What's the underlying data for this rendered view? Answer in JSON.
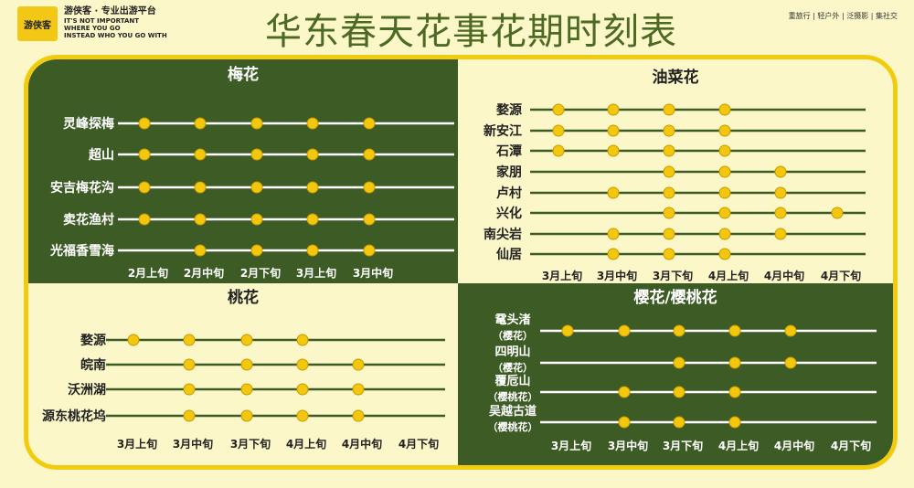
{
  "brand": {
    "logo_text": "游侠客",
    "tagline": "游侠客 · 专业出游平台",
    "slogan_lines": [
      "IT'S NOT IMPORTANT",
      "WHERE YOU GO",
      "INSTEAD WHO YOU GO WITH"
    ]
  },
  "page_title": "华东春天花事花期时刻表",
  "top_links": "重旅行 | 轻户外 | 泛摄影 | 集社交",
  "colors": {
    "dark_green": "#3d5b25",
    "light_bg": "#fbf7c8",
    "yellow": "#f4c70f",
    "border": "#f2cc0c"
  },
  "chart_data": [
    {
      "type": "timeline",
      "title": "梅花",
      "periods": [
        "2月上旬",
        "2月中旬",
        "2月下旬",
        "3月上旬",
        "3月中旬"
      ],
      "rows": [
        {
          "label": "灵峰探梅",
          "periods": [
            "2月上旬",
            "2月中旬",
            "2月下旬",
            "3月上旬",
            "3月中旬"
          ]
        },
        {
          "label": "超山",
          "periods": [
            "2月上旬",
            "2月中旬",
            "2月下旬",
            "3月上旬",
            "3月中旬"
          ]
        },
        {
          "label": "安吉梅花沟",
          "periods": [
            "2月上旬",
            "2月中旬",
            "2月下旬",
            "3月上旬",
            "3月中旬"
          ]
        },
        {
          "label": "卖花渔村",
          "periods": [
            "2月上旬",
            "2月中旬",
            "2月下旬",
            "3月上旬",
            "3月中旬"
          ]
        },
        {
          "label": "光福香雪海",
          "periods": [
            "2月中旬",
            "2月下旬",
            "3月上旬",
            "3月中旬"
          ]
        }
      ]
    },
    {
      "type": "timeline",
      "title": "油菜花",
      "periods": [
        "3月上旬",
        "3月中旬",
        "3月下旬",
        "4月上旬",
        "4月中旬",
        "4月下旬"
      ],
      "rows": [
        {
          "label": "婺源",
          "periods": [
            "3月上旬",
            "3月中旬",
            "3月下旬",
            "4月上旬"
          ]
        },
        {
          "label": "新安江",
          "periods": [
            "3月上旬",
            "3月中旬",
            "3月下旬",
            "4月上旬"
          ]
        },
        {
          "label": "石潭",
          "periods": [
            "3月上旬",
            "3月中旬",
            "3月下旬",
            "4月上旬"
          ]
        },
        {
          "label": "家朋",
          "periods": [
            "3月下旬",
            "4月上旬",
            "4月中旬"
          ]
        },
        {
          "label": "卢村",
          "periods": [
            "3月中旬",
            "3月下旬",
            "4月上旬",
            "4月中旬"
          ]
        },
        {
          "label": "兴化",
          "periods": [
            "3月下旬",
            "4月上旬",
            "4月中旬",
            "4月下旬"
          ]
        },
        {
          "label": "南尖岩",
          "periods": [
            "3月中旬",
            "3月下旬",
            "4月上旬",
            "4月中旬"
          ]
        },
        {
          "label": "仙居",
          "periods": [
            "3月中旬",
            "3月下旬",
            "4月上旬"
          ]
        }
      ]
    },
    {
      "type": "timeline",
      "title": "桃花",
      "periods": [
        "3月上旬",
        "3月中旬",
        "3月下旬",
        "4月上旬",
        "4月中旬",
        "4月下旬"
      ],
      "rows": [
        {
          "label": "婺源",
          "periods": [
            "3月上旬",
            "3月中旬",
            "3月下旬",
            "4月上旬"
          ]
        },
        {
          "label": "皖南",
          "periods": [
            "3月中旬",
            "3月下旬",
            "4月上旬",
            "4月中旬"
          ]
        },
        {
          "label": "沃洲湖",
          "periods": [
            "3月中旬",
            "3月下旬",
            "4月上旬",
            "4月中旬"
          ]
        },
        {
          "label": "源东桃花坞",
          "periods": [
            "3月中旬",
            "3月下旬",
            "4月上旬",
            "4月中旬"
          ]
        }
      ]
    },
    {
      "type": "timeline",
      "title": "樱花/樱桃花",
      "periods": [
        "3月上旬",
        "3月中旬",
        "3月下旬",
        "4月上旬",
        "4月中旬",
        "4月下旬"
      ],
      "rows": [
        {
          "label": "鼋头渚",
          "sublabel": "（樱花）",
          "periods": [
            "3月上旬",
            "3月中旬",
            "3月下旬",
            "4月上旬",
            "4月中旬"
          ]
        },
        {
          "label": "四明山",
          "sublabel": "（樱花）",
          "periods": [
            "3月下旬",
            "4月上旬",
            "4月中旬"
          ]
        },
        {
          "label": "覆卮山",
          "sublabel": "（樱桃花）",
          "periods": [
            "3月中旬",
            "3月下旬",
            "4月上旬"
          ]
        },
        {
          "label": "吴越古道",
          "sublabel": "（樱桃花）",
          "periods": [
            "3月中旬",
            "3月下旬",
            "4月上旬"
          ]
        }
      ]
    }
  ]
}
